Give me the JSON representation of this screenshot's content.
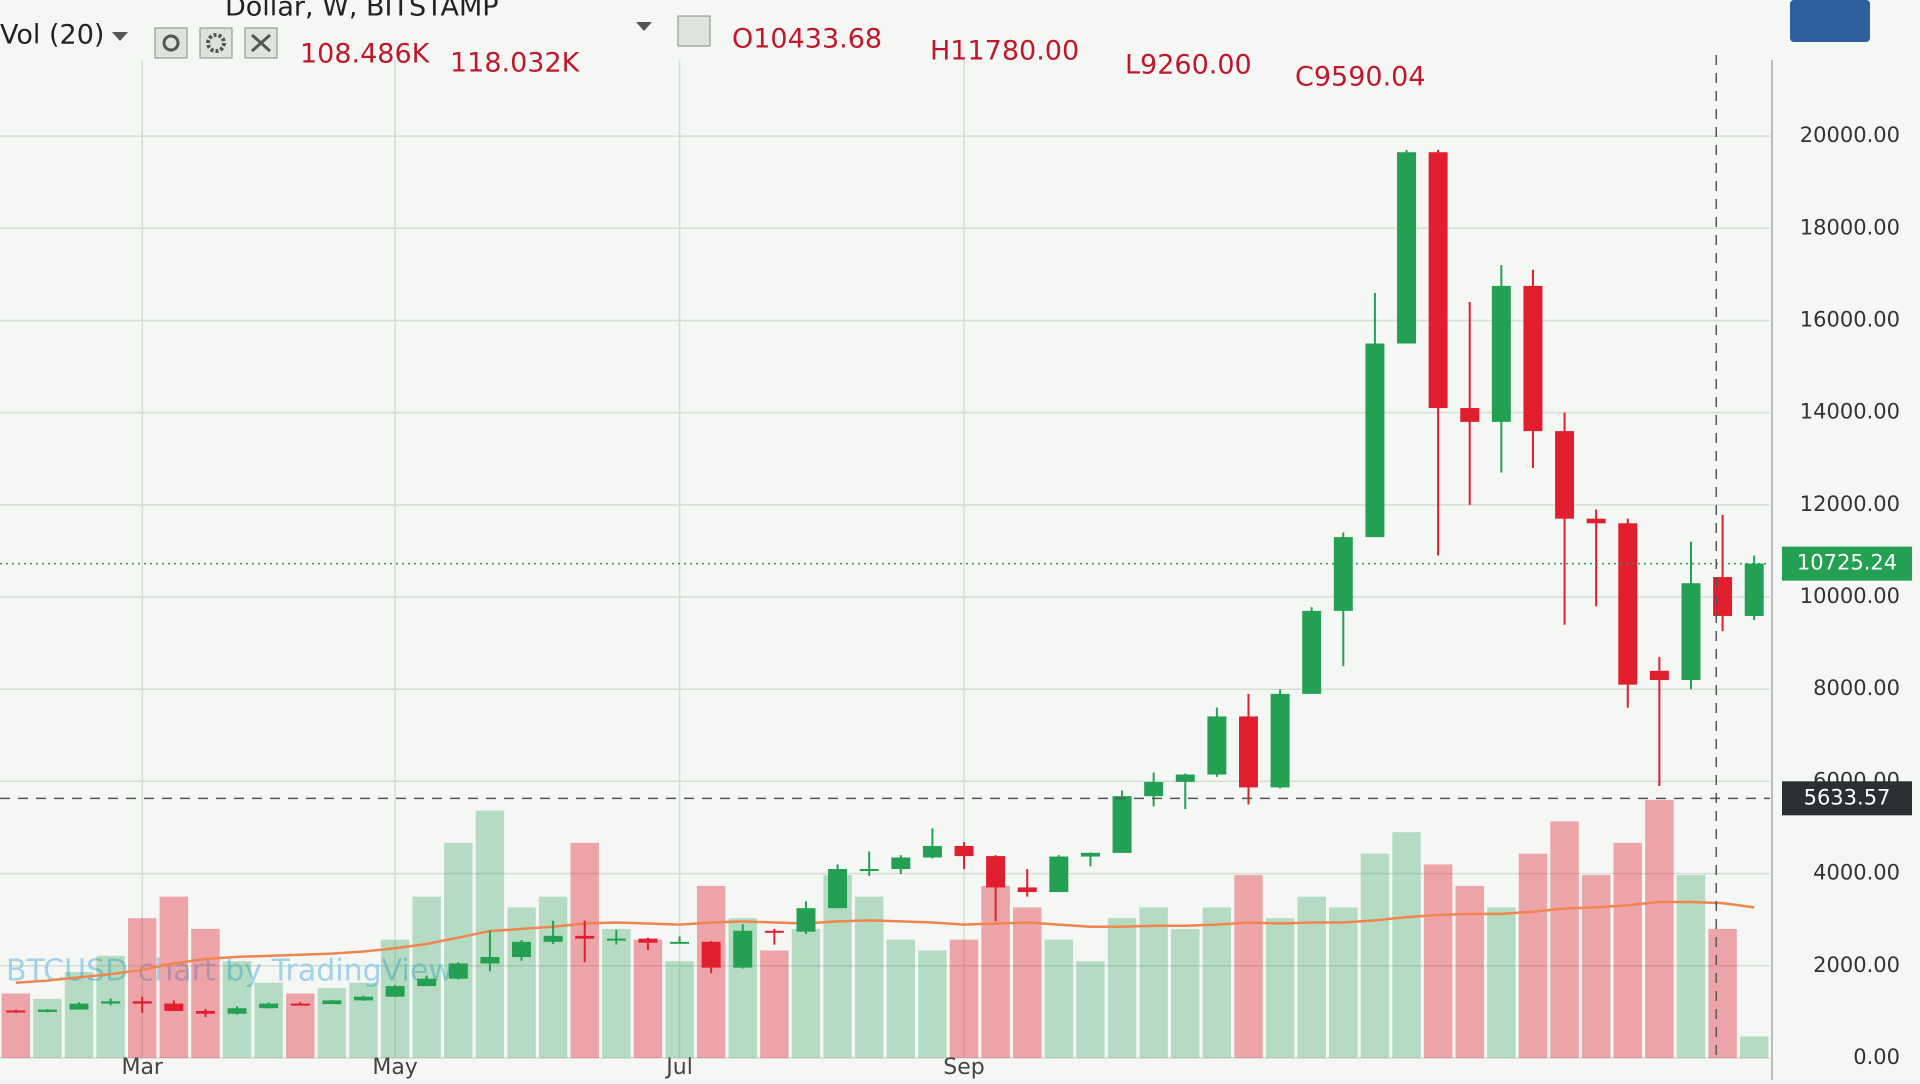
{
  "header": {
    "symbol": "Dollar, W, BITSTAMP",
    "ohlc": [
      "O10433.68",
      "H11780.00",
      "L9260.00",
      "C9590.04"
    ],
    "volume_label": "Vol (20)",
    "volume_values": [
      "108.486K",
      "118.032K"
    ]
  },
  "chart_data": {
    "type": "candlestick",
    "categories": [
      null,
      null,
      null,
      null,
      "Mar",
      null,
      null,
      null,
      null,
      null,
      null,
      null,
      "May",
      null,
      null,
      null,
      null,
      null,
      null,
      null,
      null,
      "Jul",
      null,
      null,
      null,
      null,
      null,
      null,
      null,
      null,
      "Sep",
      null,
      null,
      null,
      null,
      null,
      null,
      null,
      null,
      null,
      null,
      null,
      null,
      null,
      null,
      null,
      null,
      null,
      null,
      null,
      null,
      null,
      null,
      null,
      null,
      null
    ],
    "open": [
      1030,
      1000,
      1050,
      1180,
      1230,
      1180,
      1020,
      960,
      1080,
      1180,
      1170,
      1250,
      1330,
      1560,
      1720,
      2050,
      2190,
      2520,
      2650,
      2590,
      2590,
      2500,
      2520,
      1960,
      2760,
      2740,
      3250,
      4100,
      4100,
      4350,
      4600,
      4380,
      3700,
      3600,
      4370,
      4450,
      5680,
      5990,
      6150,
      7410,
      5870,
      7900,
      9700,
      11300,
      15500,
      19650,
      14100,
      13800,
      16750,
      13600,
      11700,
      11600,
      8400,
      8200,
      10433.68,
      9590
    ],
    "high": [
      1050,
      1060,
      1210,
      1290,
      1330,
      1250,
      1060,
      1120,
      1210,
      1210,
      1260,
      1350,
      1580,
      1790,
      2080,
      2760,
      2560,
      2980,
      2980,
      2780,
      2610,
      2640,
      2540,
      2900,
      2800,
      3400,
      4200,
      4480,
      4400,
      4980,
      4680,
      4400,
      4100,
      4400,
      4460,
      5800,
      6190,
      6170,
      7600,
      7900,
      8000,
      9780,
      11400,
      16600,
      19700,
      19700,
      16400,
      17200,
      17100,
      14000,
      11900,
      11700,
      8700,
      11200,
      11780,
      10900
    ],
    "low": [
      980,
      990,
      1050,
      1140,
      980,
      1050,
      890,
      940,
      1080,
      1140,
      1170,
      1240,
      1320,
      1560,
      1700,
      1880,
      2110,
      2470,
      2080,
      2460,
      2340,
      2490,
      1840,
      1940,
      2460,
      2690,
      3250,
      3950,
      3990,
      4330,
      4100,
      2970,
      3500,
      3600,
      4160,
      4450,
      5460,
      5400,
      6100,
      5500,
      5850,
      7900,
      8500,
      11300,
      15500,
      10900,
      12000,
      12700,
      12800,
      9400,
      9800,
      7600,
      5900,
      8000,
      9260,
      9500
    ],
    "close": [
      1000,
      1050,
      1180,
      1230,
      1180,
      1020,
      960,
      1080,
      1180,
      1170,
      1250,
      1330,
      1560,
      1720,
      2050,
      2190,
      2520,
      2650,
      2590,
      2590,
      2500,
      2520,
      1960,
      2760,
      2740,
      3250,
      4100,
      4100,
      4350,
      4600,
      4380,
      3700,
      3600,
      4370,
      4450,
      5680,
      5990,
      6150,
      7410,
      5870,
      7900,
      9700,
      11300,
      15500,
      19650,
      14100,
      13800,
      16750,
      13600,
      11700,
      11600,
      8100,
      8200,
      10300,
      9590.04,
      10725.24
    ],
    "volume": [
      60,
      55,
      80,
      95,
      130,
      150,
      120,
      90,
      70,
      60,
      65,
      70,
      110,
      150,
      200,
      230,
      140,
      150,
      200,
      120,
      110,
      90,
      160,
      130,
      100,
      120,
      170,
      150,
      110,
      100,
      110,
      160,
      140,
      110,
      90,
      130,
      140,
      120,
      140,
      170,
      130,
      150,
      140,
      190,
      210,
      180,
      160,
      140,
      190,
      220,
      170,
      200,
      240,
      170,
      120,
      20
    ],
    "volume_ma": [
      70,
      72,
      75,
      78,
      82,
      88,
      92,
      94,
      95,
      96,
      97,
      99,
      102,
      106,
      112,
      118,
      120,
      122,
      125,
      126,
      125,
      124,
      126,
      127,
      126,
      125,
      127,
      128,
      127,
      126,
      124,
      125,
      126,
      124,
      122,
      122,
      123,
      123,
      124,
      126,
      125,
      126,
      126,
      128,
      131,
      133,
      134,
      134,
      136,
      139,
      140,
      142,
      145,
      145,
      144,
      140
    ],
    "volume_ylim": [
      0,
      900
    ],
    "ylim": [
      0,
      21000
    ],
    "yticks": [
      {
        "value": 0,
        "label": "0.00"
      },
      {
        "value": 2000,
        "label": "2000.00"
      },
      {
        "value": 4000,
        "label": "4000.00"
      },
      {
        "value": 6000,
        "label": "6000.00"
      },
      {
        "value": 8000,
        "label": "8000.00"
      },
      {
        "value": 10000,
        "label": "10000.00"
      },
      {
        "value": 12000,
        "label": "12000.00"
      },
      {
        "value": 14000,
        "label": "14000.00"
      },
      {
        "value": 16000,
        "label": "16000.00"
      },
      {
        "value": 18000,
        "label": "18000.00"
      },
      {
        "value": 20000,
        "label": "20000.00"
      }
    ],
    "up_color": "#23a052",
    "down_color": "#e01e2e",
    "volume_ma_color": "#f0864f",
    "last_price": 10725.24,
    "crosshair_price": 5633.57,
    "watermark": "BTCUSD chart by TradingView",
    "grid": true
  }
}
